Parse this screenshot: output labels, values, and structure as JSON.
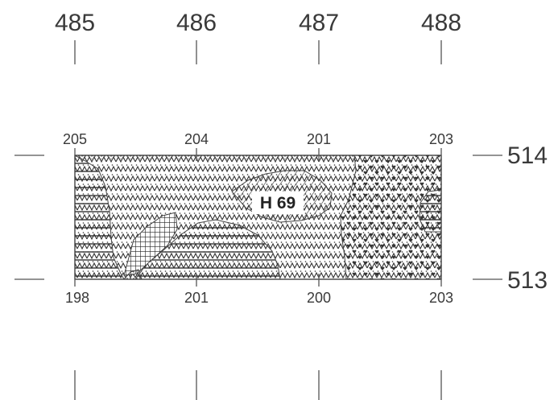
{
  "grid_x_labels": [
    "485",
    "486",
    "487",
    "488"
  ],
  "grid_y_labels": [
    "514",
    "513"
  ],
  "top_elevations": [
    "205",
    "204",
    "201",
    "203"
  ],
  "bottom_elevations": [
    "198",
    "201",
    "200",
    "203"
  ],
  "feature_label": "H 69"
}
